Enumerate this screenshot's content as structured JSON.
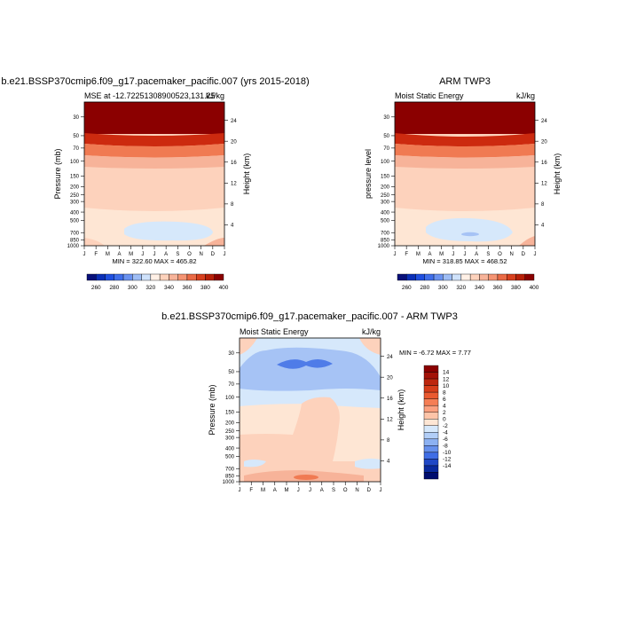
{
  "chart_data": [
    {
      "type": "heatmap",
      "title": "b.e21.BSSP370cmip6.f09_g17.pacemaker_pacific.007 (yrs 2015-2018)",
      "subtitle_left": "MSE at -12.72251308900523,131.25",
      "subtitle_right": "kJ/kg",
      "ylabel": "Pressure (mb)",
      "y2label": "Height (km)",
      "x_ticks": [
        "J",
        "F",
        "M",
        "A",
        "M",
        "J",
        "J",
        "A",
        "S",
        "O",
        "N",
        "D",
        "J"
      ],
      "y_ticks": [
        "30",
        "50",
        "70",
        "100",
        "150",
        "200",
        "250",
        "300",
        "400",
        "500",
        "700",
        "850",
        "1000"
      ],
      "y2_ticks": [
        "24",
        "20",
        "16",
        "12",
        "8",
        "4"
      ],
      "minmax": "MIN = 322.60 MAX = 465.82",
      "colorbar_labels": [
        "260",
        "280",
        "300",
        "320",
        "340",
        "360",
        "380",
        "400"
      ]
    },
    {
      "type": "heatmap",
      "title": "ARM TWP3",
      "subtitle_left": "Moist Static Energy",
      "subtitle_right": "kJ/kg",
      "ylabel": "pressure level",
      "y2label": "Height (km)",
      "x_ticks": [
        "J",
        "F",
        "M",
        "A",
        "M",
        "J",
        "J",
        "A",
        "S",
        "O",
        "N",
        "D",
        "J"
      ],
      "y_ticks": [
        "30",
        "50",
        "70",
        "100",
        "150",
        "200",
        "250",
        "300",
        "400",
        "500",
        "700",
        "850",
        "1000"
      ],
      "y2_ticks": [
        "24",
        "20",
        "16",
        "12",
        "8",
        "4"
      ],
      "minmax": "MIN = 318.85 MAX = 468.52",
      "colorbar_labels": [
        "260",
        "280",
        "300",
        "320",
        "340",
        "360",
        "380",
        "400"
      ]
    },
    {
      "type": "heatmap",
      "title": "b.e21.BSSP370cmip6.f09_g17.pacemaker_pacific.007 - ARM TWP3",
      "subtitle_left": "Moist Static Energy",
      "subtitle_right": "kJ/kg",
      "ylabel": "Pressure (mb)",
      "y2label": "Height (km)",
      "x_ticks": [
        "J",
        "F",
        "M",
        "A",
        "M",
        "J",
        "J",
        "A",
        "S",
        "O",
        "N",
        "D",
        "J"
      ],
      "y_ticks": [
        "30",
        "50",
        "70",
        "100",
        "150",
        "200",
        "250",
        "300",
        "400",
        "500",
        "700",
        "850",
        "1000"
      ],
      "y2_ticks": [
        "24",
        "20",
        "16",
        "12",
        "8",
        "4"
      ],
      "minmax": "MIN =  -6.72 MAX =   7.77",
      "colorbar_labels": [
        "14",
        "12",
        "10",
        "8",
        "6",
        "4",
        "2",
        "0",
        "-2",
        "-4",
        "-6",
        "-8",
        "-10",
        "-12",
        "-14"
      ]
    }
  ],
  "colors": {
    "darkred": "#8b0000",
    "red": "#cc2a0f",
    "orange": "#f07a52",
    "salmon": "#f7b399",
    "peach": "#fdd2bc",
    "cream": "#fee6d4",
    "lightblue": "#d6e8fb",
    "midblue": "#a6c3f5",
    "blue": "#4f7ce8",
    "navy": "#0a1fa0"
  }
}
